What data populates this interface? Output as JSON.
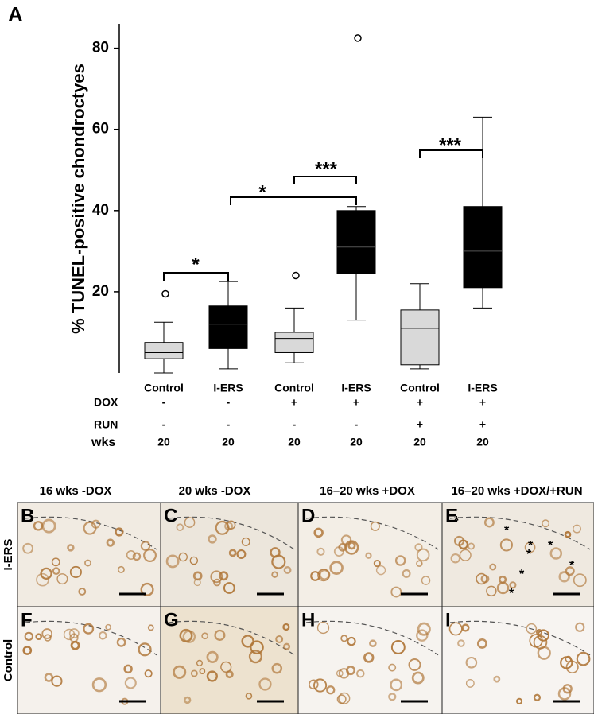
{
  "chart_data": {
    "type": "box",
    "panel_label": "A",
    "y_label": "% TUNEL-positive chondroctyes",
    "categories": [
      "Control",
      "I-ERS",
      "Control",
      "I-ERS",
      "Control",
      "I-ERS"
    ],
    "colors": [
      "#d9d9d9",
      "#000000",
      "#d9d9d9",
      "#000000",
      "#d9d9d9",
      "#000000"
    ],
    "boxes": [
      {
        "min": 0,
        "q1": 3.5,
        "median": 5,
        "q3": 7.5,
        "max": 12.5,
        "outliers": [
          19.5
        ]
      },
      {
        "min": 1,
        "q1": 6,
        "median": 12,
        "q3": 16.5,
        "max": 22.5,
        "outliers": []
      },
      {
        "min": 2.5,
        "q1": 5,
        "median": 8.5,
        "q3": 10,
        "max": 16,
        "outliers": [
          24
        ]
      },
      {
        "min": 13,
        "q1": 24.5,
        "median": 31,
        "q3": 40,
        "max": 41,
        "outliers": [
          82.5
        ]
      },
      {
        "min": 1,
        "q1": 2,
        "median": 11,
        "q3": 15.5,
        "max": 22,
        "outliers": []
      },
      {
        "min": 16,
        "q1": 21,
        "median": 30,
        "q3": 41,
        "max": 63,
        "outliers": []
      }
    ],
    "ylim": [
      0,
      86
    ],
    "yticks": [
      20,
      40,
      60,
      80
    ],
    "significance": [
      "*",
      "*",
      "***",
      "***"
    ],
    "conditions": [
      {
        "label": "DOX",
        "values": [
          "-",
          "-",
          "+",
          "+",
          "+",
          "+"
        ]
      },
      {
        "label": "RUN",
        "values": [
          "-",
          "-",
          "-",
          "-",
          "+",
          "+"
        ]
      },
      {
        "label": "wks",
        "values": [
          "20",
          "20",
          "20",
          "20",
          "20",
          "20"
        ]
      }
    ]
  },
  "micrographs": {
    "columns": [
      "16 wks -DOX",
      "20 wks -DOX",
      "16–20 wks +DOX",
      "16–20 wks +DOX/+RUN"
    ],
    "rows": [
      "I-ERS",
      "Control"
    ],
    "panels": [
      "B",
      "C",
      "D",
      "E",
      "F",
      "G",
      "H",
      "I"
    ],
    "asterisks": [
      "*",
      "*",
      "*",
      "*",
      "*",
      "*",
      "*",
      "*"
    ]
  }
}
